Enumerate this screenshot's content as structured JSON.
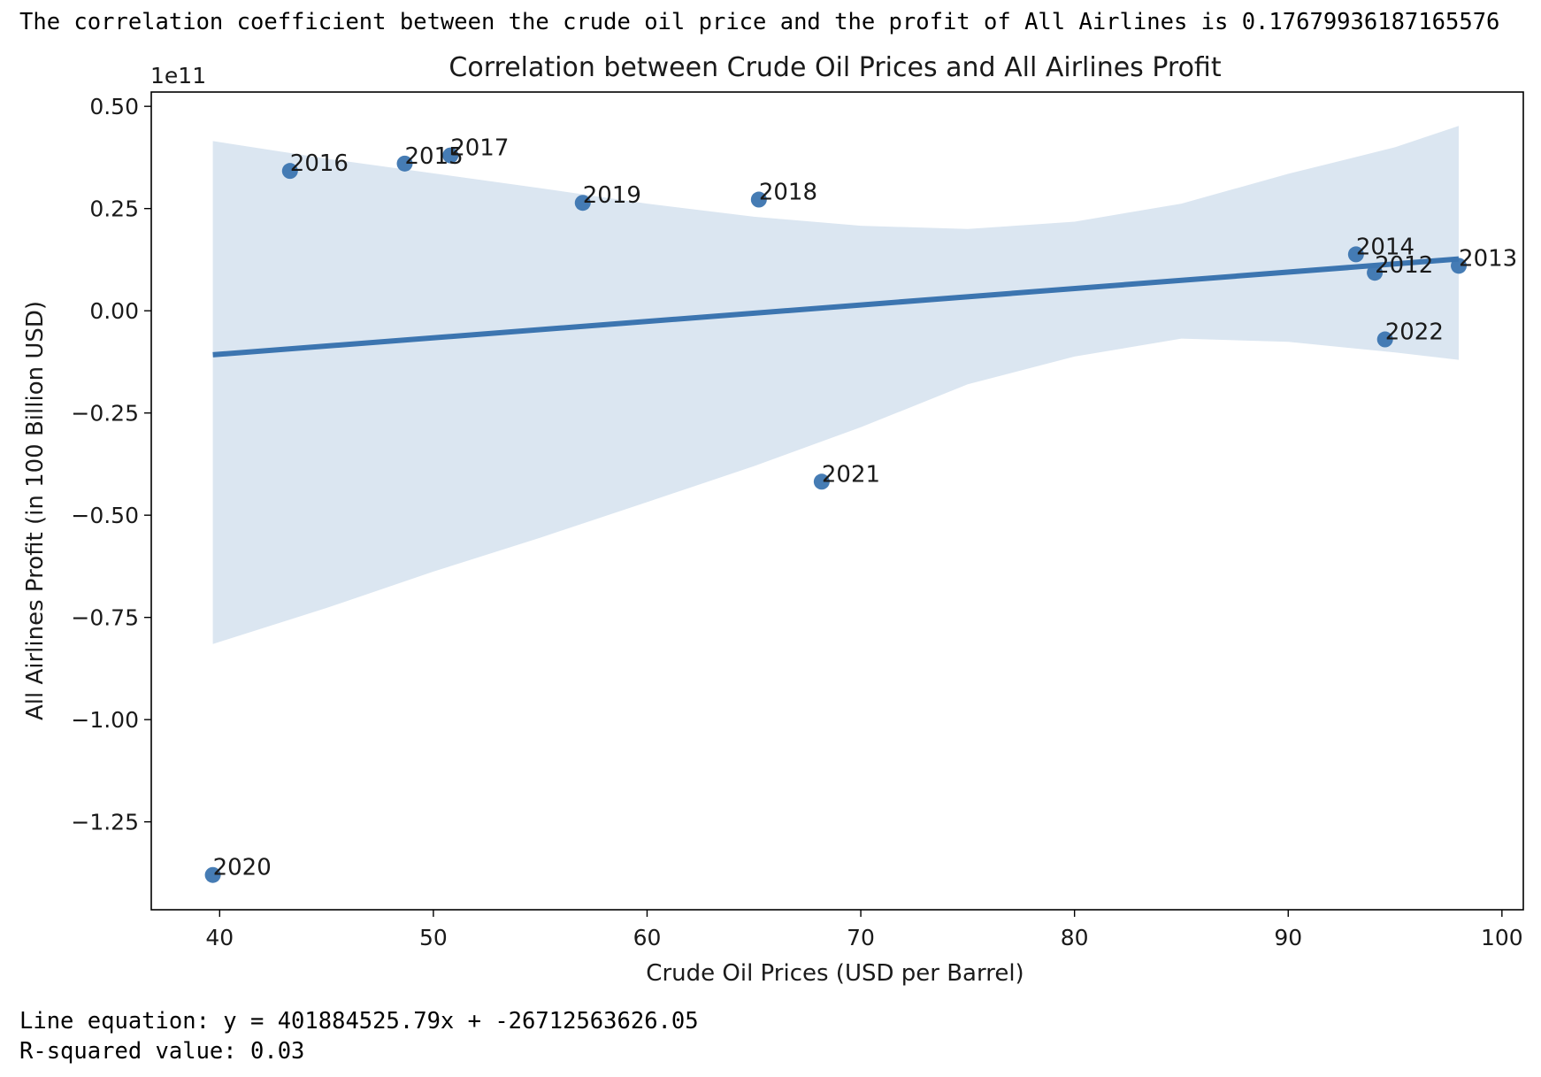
{
  "output": {
    "correlation_text": "The correlation coefficient between the crude oil price and the profit of All Airlines is 0.17679936187165576",
    "equation_text": "Line equation: y = 401884525.79x + -26712563626.05",
    "r_squared_text": "R-squared value: 0.03"
  },
  "chart_data": {
    "type": "scatter",
    "title": "Correlation between Crude Oil Prices and All Airlines Profit",
    "xlabel": "Crude Oil Prices (USD per Barrel)",
    "ylabel": "All Airlines Profit (in 100 Billion USD)",
    "y_offset_label": "1e11",
    "xlim": [
      36.8,
      101
    ],
    "ylim": [
      -1.465,
      0.535
    ],
    "x_ticks": [
      40,
      50,
      60,
      70,
      80,
      90,
      100
    ],
    "y_ticks": [
      0.5,
      0.25,
      0.0,
      -0.25,
      -0.5,
      -0.75,
      -1.0,
      -1.25
    ],
    "y_tick_labels": [
      "0.50",
      "0.25",
      "0.00",
      "−0.25",
      "−0.50",
      "−0.75",
      "−1.00",
      "−1.25"
    ],
    "points": [
      {
        "label": "2012",
        "x": 94.05,
        "y": 0.093
      },
      {
        "label": "2013",
        "x": 97.98,
        "y": 0.11
      },
      {
        "label": "2014",
        "x": 93.17,
        "y": 0.138
      },
      {
        "label": "2015",
        "x": 48.66,
        "y": 0.36
      },
      {
        "label": "2016",
        "x": 43.29,
        "y": 0.342
      },
      {
        "label": "2017",
        "x": 50.8,
        "y": 0.38
      },
      {
        "label": "2018",
        "x": 65.23,
        "y": 0.272
      },
      {
        "label": "2019",
        "x": 56.99,
        "y": 0.264
      },
      {
        "label": "2020",
        "x": 39.68,
        "y": -1.38
      },
      {
        "label": "2021",
        "x": 68.17,
        "y": -0.418
      },
      {
        "label": "2022",
        "x": 94.53,
        "y": -0.07
      }
    ],
    "regression_line": {
      "slope": 0.00401884525794,
      "intercept": -0.2671256362605,
      "x_range": [
        39.68,
        97.98
      ]
    },
    "confidence_band": [
      {
        "x": 39.68,
        "upper": 0.415,
        "lower": -0.815
      },
      {
        "x": 45,
        "upper": 0.372,
        "lower": -0.727
      },
      {
        "x": 50,
        "upper": 0.336,
        "lower": -0.638
      },
      {
        "x": 55,
        "upper": 0.3,
        "lower": -0.555
      },
      {
        "x": 60,
        "upper": 0.262,
        "lower": -0.468
      },
      {
        "x": 65,
        "upper": 0.23,
        "lower": -0.38
      },
      {
        "x": 70,
        "upper": 0.208,
        "lower": -0.285
      },
      {
        "x": 75,
        "upper": 0.2,
        "lower": -0.18
      },
      {
        "x": 80,
        "upper": 0.218,
        "lower": -0.112
      },
      {
        "x": 85,
        "upper": 0.262,
        "lower": -0.068
      },
      {
        "x": 90,
        "upper": 0.335,
        "lower": -0.076
      },
      {
        "x": 95,
        "upper": 0.4,
        "lower": -0.102
      },
      {
        "x": 97.98,
        "upper": 0.452,
        "lower": -0.12
      }
    ],
    "grid": false,
    "colors": {
      "points": "#3c75b0",
      "line": "#3c75b0",
      "band": "#dbe6f1"
    }
  }
}
